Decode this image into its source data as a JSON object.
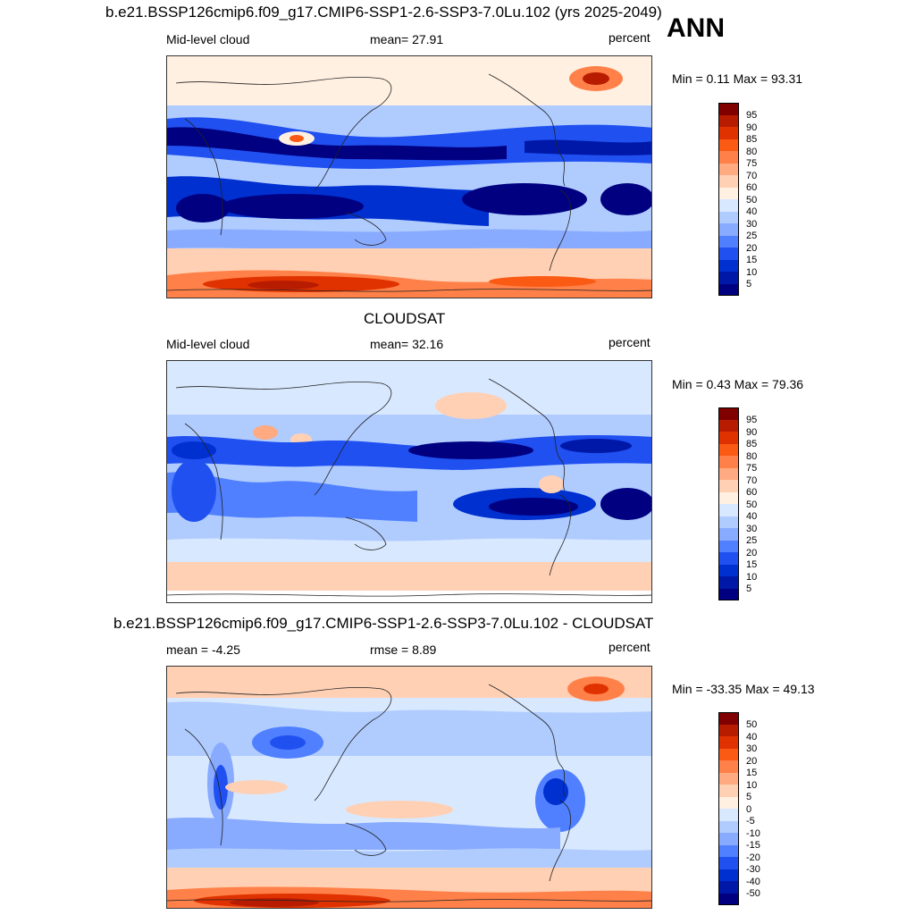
{
  "header": {
    "title": "b.e21.BSSP126cmip6.f09_g17.CMIP6-SSP1-2.6-SSP3-7.0Lu.102 (yrs 2025-2049)",
    "season": "ANN"
  },
  "panels": [
    {
      "id": "model",
      "title": "",
      "left_label": "Mid-level cloud",
      "center_label": "mean=  27.91",
      "units": "percent",
      "minmax": "Min =   0.11 Max =  93.31",
      "levels": [
        "95",
        "90",
        "85",
        "80",
        "75",
        "70",
        "60",
        "50",
        "40",
        "30",
        "25",
        "20",
        "15",
        "10",
        "5"
      ]
    },
    {
      "id": "obs",
      "title": "CLOUDSAT",
      "left_label": "Mid-level cloud",
      "center_label": "mean=  32.16",
      "units": "percent",
      "minmax": "Min =   0.43 Max =  79.36",
      "levels": [
        "95",
        "90",
        "85",
        "80",
        "75",
        "70",
        "60",
        "50",
        "40",
        "30",
        "25",
        "20",
        "15",
        "10",
        "5"
      ]
    },
    {
      "id": "diff",
      "title": "b.e21.BSSP126cmip6.f09_g17.CMIP6-SSP1-2.6-SSP3-7.0Lu.102 - CLOUDSAT",
      "left_label": "mean =  -4.25",
      "center_label": "rmse =   8.89",
      "units": "percent",
      "minmax": "Min = -33.35 Max =  49.13",
      "levels": [
        "50",
        "40",
        "30",
        "20",
        "15",
        "10",
        "5",
        "0",
        "-5",
        "-10",
        "-15",
        "-20",
        "-30",
        "-40",
        "-50"
      ]
    }
  ],
  "colors": {
    "colorbar": [
      "#800000",
      "#b81c00",
      "#e03200",
      "#fa5a14",
      "#ff8048",
      "#ffaa80",
      "#ffd0b4",
      "#fff0e2",
      "#d8e8ff",
      "#b0ccff",
      "#88aaff",
      "#5080ff",
      "#2050f0",
      "#0030d0",
      "#0018a8",
      "#000080"
    ]
  }
}
